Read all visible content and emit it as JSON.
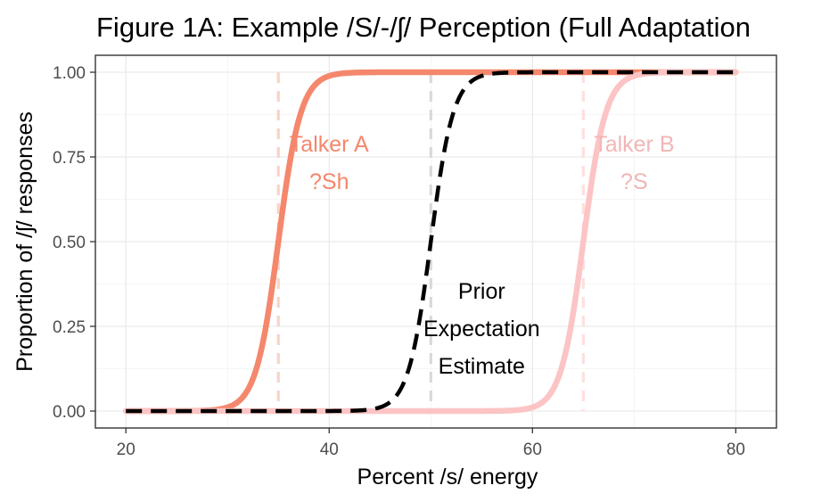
{
  "chart_data": {
    "type": "line",
    "title": "Figure 1A: Example /S/-/ʃ/ Perception (Full Adaptation",
    "xlabel": "Percent /s/ energy",
    "ylabel": "Proportion of /ʃ/ responses",
    "xlim": [
      17,
      84
    ],
    "ylim": [
      -0.05,
      1.05
    ],
    "x_ticks": [
      20,
      40,
      60,
      80
    ],
    "x_tick_labels": [
      "20",
      "40",
      "60",
      "80"
    ],
    "y_ticks": [
      0,
      0.25,
      0.5,
      0.75,
      1
    ],
    "y_tick_labels": [
      "0.00",
      "0.25",
      "0.50",
      "0.75",
      "1.00"
    ],
    "grid": true,
    "legend": "none",
    "series": [
      {
        "color": "#f4876c",
        "style": "solid",
        "midpoint": 35,
        "x_range": [
          20,
          80
        ],
        "x": [
          20,
          25,
          30,
          32,
          33,
          34,
          35,
          36,
          37,
          38,
          40,
          45,
          50,
          60,
          70,
          80
        ],
        "y": [
          0.0,
          0.0,
          0.01,
          0.08,
          0.2,
          0.4,
          0.5,
          0.6,
          0.8,
          0.92,
          0.99,
          1.0,
          1.0,
          1.0,
          1.0,
          1.0
        ]
      },
      {
        "color": "#fcc4c4",
        "style": "solid",
        "midpoint": 65,
        "x_range": [
          20,
          80
        ],
        "x": [
          20,
          30,
          40,
          50,
          55,
          60,
          62,
          63,
          64,
          65,
          66,
          67,
          68,
          70,
          75,
          80
        ],
        "y": [
          0.0,
          0.0,
          0.0,
          0.0,
          0.0,
          0.01,
          0.08,
          0.2,
          0.4,
          0.5,
          0.6,
          0.8,
          0.92,
          0.99,
          1.0,
          1.0
        ]
      },
      {
        "color": "#000000",
        "style": "dashed",
        "midpoint": 50,
        "x_range": [
          20,
          80
        ],
        "x": [
          20,
          30,
          40,
          45,
          47,
          48,
          49,
          50,
          51,
          52,
          53,
          55,
          60,
          70,
          80
        ],
        "y": [
          0.0,
          0.0,
          0.0,
          0.0,
          0.02,
          0.06,
          0.2,
          0.5,
          0.8,
          0.94,
          0.98,
          1.0,
          1.0,
          1.0,
          1.0
        ]
      }
    ],
    "vlines": [
      {
        "x": 35,
        "color": "#f9d3c8"
      },
      {
        "x": 50,
        "color": "#d9d9d9"
      },
      {
        "x": 65,
        "color": "#fde0df"
      }
    ],
    "annotations": [
      {
        "id": "talker_a",
        "lines": [
          "Talker A",
          "?Sh"
        ],
        "x": 40,
        "y_top": 0.79,
        "color": "#f4876c",
        "anchor": "middle"
      },
      {
        "id": "talker_b",
        "lines": [
          "Talker B",
          "?S"
        ],
        "x": 70,
        "y_top": 0.79,
        "color": "#f2b6b6",
        "anchor": "middle"
      },
      {
        "id": "prior",
        "lines": [
          "Prior",
          "Expectation",
          "Estimate"
        ],
        "x": 55,
        "y_top": 0.355,
        "color": "#000000",
        "anchor": "middle"
      }
    ]
  }
}
